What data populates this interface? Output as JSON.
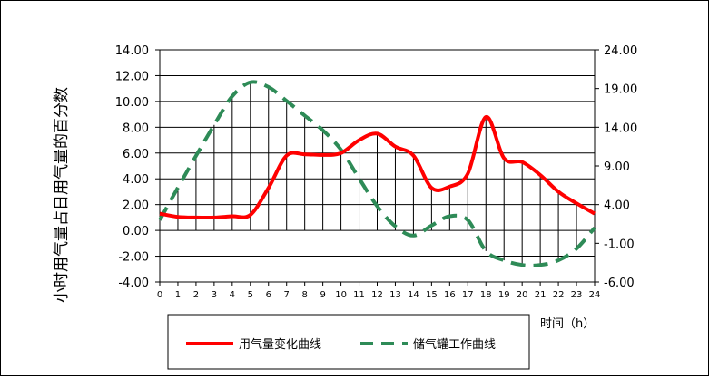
{
  "chart_data": {
    "type": "line",
    "x": [
      0,
      1,
      2,
      3,
      4,
      5,
      6,
      7,
      8,
      9,
      10,
      11,
      12,
      13,
      14,
      15,
      16,
      17,
      18,
      19,
      20,
      21,
      22,
      23,
      24
    ],
    "xlabel": "时间（h）",
    "ylabel": "小时用气量占日用气量的百分数",
    "y_ticks": [
      "14.00",
      "12.00",
      "10.00",
      "8.00",
      "6.00",
      "4.00",
      "2.00",
      "0.00",
      "-2.00",
      "-4.00"
    ],
    "y2_ticks": [
      "24.00",
      "19.00",
      "14.00",
      "9.00",
      "4.00",
      "-1.00",
      "-6.00"
    ],
    "ylim": [
      -4,
      14
    ],
    "y2lim": [
      -6,
      24
    ],
    "grid": true,
    "legend_position": "bottom",
    "series": [
      {
        "name": "用气量变化曲线",
        "axis": "left",
        "color": "#ff0000",
        "style": "solid",
        "values": [
          1.3,
          1.05,
          1.0,
          1.0,
          1.1,
          1.2,
          3.3,
          5.8,
          5.9,
          5.85,
          6.0,
          7.0,
          7.5,
          6.5,
          5.8,
          3.3,
          3.4,
          4.4,
          8.8,
          5.6,
          5.3,
          4.3,
          3.0,
          2.1,
          1.3
        ]
      },
      {
        "name": "储气罐工作曲线",
        "axis": "right",
        "color": "#2e8b57",
        "style": "dashed",
        "values": [
          2.0,
          6.2,
          10.3,
          14.3,
          18.0,
          19.8,
          19.2,
          17.4,
          15.5,
          13.6,
          11.1,
          7.4,
          3.8,
          1.2,
          0.0,
          1.3,
          2.5,
          2.0,
          -2.0,
          -3.2,
          -3.8,
          -3.8,
          -3.2,
          -1.7,
          1.0
        ]
      }
    ]
  }
}
